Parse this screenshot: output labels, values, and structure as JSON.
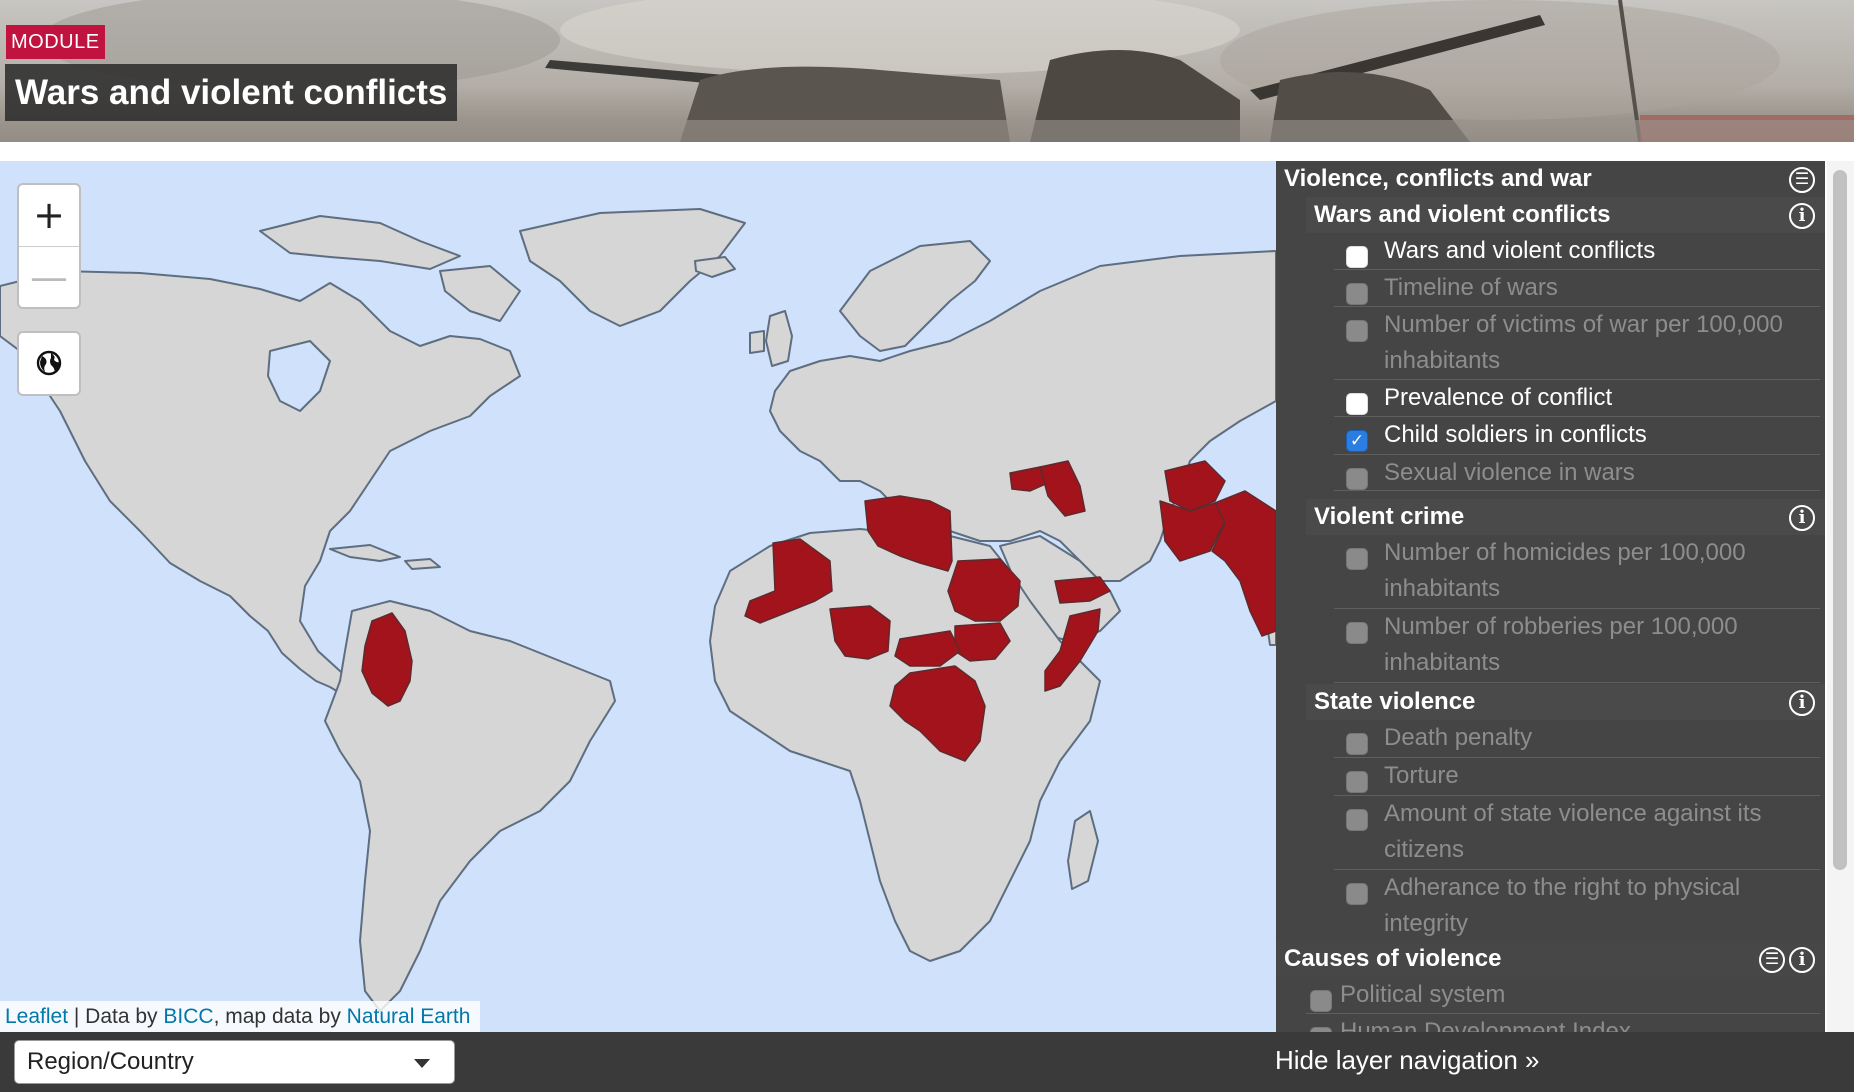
{
  "header": {
    "module_tag": "MODULE",
    "title": "Wars and violent conflicts"
  },
  "map": {
    "zoom_in_label": "+",
    "zoom_out_label": "—",
    "globe_icon": "globe-icon",
    "attribution": {
      "leaflet": "Leaflet",
      "sep1": " | Data by ",
      "bicc": "BICC",
      "sep2": ", map data by ",
      "natural_earth": "Natural Earth"
    },
    "colors": {
      "ocean": "#cfe1fb",
      "land": "#d6d6d6",
      "border": "#5e6e80",
      "highlight": "#a2131c"
    },
    "highlighted_countries": [
      "Colombia",
      "Mali",
      "Libya",
      "Nigeria",
      "Sudan",
      "South Sudan",
      "Central African Republic",
      "DR Congo",
      "Somalia",
      "Yemen",
      "Syria",
      "Iraq",
      "Afghanistan",
      "Pakistan",
      "India"
    ]
  },
  "panel": {
    "title": "Violence, conflicts and war",
    "wars_section": {
      "title": "Wars and violent conflicts",
      "items": [
        {
          "line1": "Wars and violent conflicts",
          "line2": "",
          "state": "white"
        },
        {
          "line1": "Timeline of wars",
          "line2": "",
          "state": "disabled"
        },
        {
          "line1": "Number of victims of war per 100,000",
          "line2": "inhabitants",
          "state": "disabled"
        },
        {
          "line1": "Prevalence of conflict",
          "line2": "",
          "state": "white"
        },
        {
          "line1": "Child soldiers in conflicts",
          "line2": "",
          "state": "checked"
        },
        {
          "line1": "Sexual violence in wars",
          "line2": "",
          "state": "disabled"
        }
      ]
    },
    "crime_section": {
      "title": "Violent crime",
      "items": [
        {
          "line1": "Number of homicides per 100,000",
          "line2": "inhabitants",
          "state": "disabled"
        },
        {
          "line1": "Number of robberies per 100,000",
          "line2": "inhabitants",
          "state": "disabled"
        }
      ]
    },
    "state_section": {
      "title": "State violence",
      "items": [
        {
          "line1": "Death penalty",
          "line2": "",
          "state": "disabled"
        },
        {
          "line1": "Torture",
          "line2": "",
          "state": "disabled"
        },
        {
          "line1": "Amount of state violence against its",
          "line2": "citizens",
          "state": "disabled"
        },
        {
          "line1": "Adherance to the right to physical",
          "line2": "integrity",
          "state": "disabled"
        }
      ]
    },
    "causes_section": {
      "title": "Causes of violence",
      "items": [
        {
          "line1": "Political system",
          "line2": "",
          "state": "disabled"
        },
        {
          "line1": "Human Development Index",
          "line2": "",
          "state": "disabled"
        }
      ]
    },
    "checkmark": "✓",
    "info_glyph": "i",
    "filter_glyph": "☰"
  },
  "bottom": {
    "region_select_value": "Region/Country",
    "hide_nav_label": "Hide layer navigation »"
  }
}
